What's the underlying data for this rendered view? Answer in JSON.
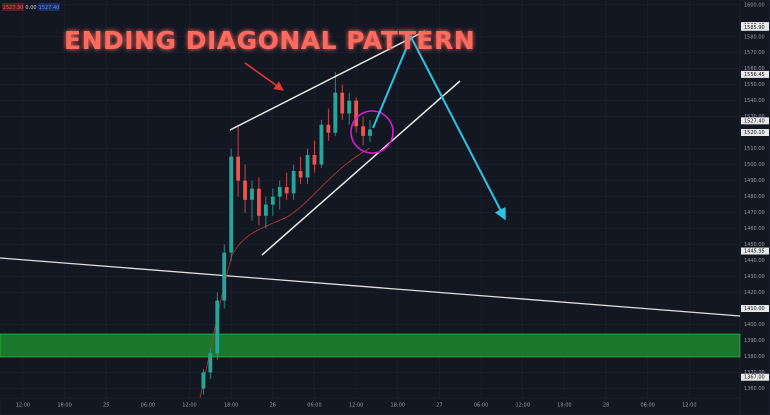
{
  "chart_data": {
    "type": "candlestick",
    "title": "ENDING DIAGONAL PATTERN",
    "header_quotes": [
      "1527.30",
      "0.00",
      "1527.40"
    ],
    "xlim": [
      -3.3,
      103.3
    ],
    "xticks": [
      {
        "value": 0,
        "label": "12:00"
      },
      {
        "value": 6,
        "label": "18:00"
      },
      {
        "value": 12,
        "label": "25"
      },
      {
        "value": 18,
        "label": "06:00"
      },
      {
        "value": 24,
        "label": "12:00"
      },
      {
        "value": 30,
        "label": "18:00"
      },
      {
        "value": 36,
        "label": "26"
      },
      {
        "value": 42,
        "label": "06:00"
      },
      {
        "value": 48,
        "label": "12:00"
      },
      {
        "value": 54,
        "label": "18:00"
      },
      {
        "value": 60,
        "label": "27"
      },
      {
        "value": 66,
        "label": "06:00"
      },
      {
        "value": 72,
        "label": "12:00"
      },
      {
        "value": 78,
        "label": "18:00"
      },
      {
        "value": 84,
        "label": "28"
      },
      {
        "value": 90,
        "label": "06:00"
      },
      {
        "value": 96,
        "label": "12:00"
      }
    ],
    "ylim": [
      1354,
      1603
    ],
    "yticks": [
      {
        "value": 1360,
        "label": "1360.00"
      },
      {
        "value": 1370,
        "label": "1370.00"
      },
      {
        "value": 1380,
        "label": "1380.00"
      },
      {
        "value": 1390,
        "label": "1390.00"
      },
      {
        "value": 1400,
        "label": "1400.00"
      },
      {
        "value": 1420,
        "label": "1420.00"
      },
      {
        "value": 1430,
        "label": "1430.00"
      },
      {
        "value": 1440,
        "label": "1440.00"
      },
      {
        "value": 1450,
        "label": "1450.00"
      },
      {
        "value": 1460,
        "label": "1460.00"
      },
      {
        "value": 1470,
        "label": "1470.00"
      },
      {
        "value": 1480,
        "label": "1480.00"
      },
      {
        "value": 1490,
        "label": "1490.00"
      },
      {
        "value": 1500,
        "label": "1500.00"
      },
      {
        "value": 1510,
        "label": "1510.00"
      },
      {
        "value": 1530,
        "label": "1530.00"
      },
      {
        "value": 1540,
        "label": "1540.00"
      },
      {
        "value": 1550,
        "label": "1550.00"
      },
      {
        "value": 1560,
        "label": "1560.00"
      },
      {
        "value": 1570,
        "label": "1570.00"
      },
      {
        "value": 1580,
        "label": "1580.00"
      },
      {
        "value": 1600,
        "label": "1600.00"
      }
    ],
    "price_labels": [
      {
        "value": 1587,
        "label": "1587.00"
      },
      {
        "value": 1585.9,
        "label": "1585.90"
      },
      {
        "value": 1556.45,
        "label": "1556.45"
      },
      {
        "value": 1527.4,
        "label": "1527.40"
      },
      {
        "value": 1520.1,
        "label": "1520.10"
      },
      {
        "value": 1445.95,
        "label": "1445.95"
      },
      {
        "value": 1410,
        "label": "1410.00"
      },
      {
        "value": 1367,
        "label": "1367.00"
      }
    ],
    "up_color": "#26a69a",
    "down_color": "#ef5350",
    "x": [
      26,
      27,
      28,
      29,
      30,
      31,
      32,
      33,
      34,
      35,
      36,
      37,
      38,
      39,
      40,
      41,
      42,
      43,
      44,
      45,
      46,
      47,
      48,
      49,
      50
    ],
    "open": [
      1360,
      1370,
      1382,
      1415,
      1445,
      1505,
      1490,
      1478,
      1485,
      1468,
      1475,
      1480,
      1486,
      1482,
      1496,
      1492,
      1506,
      1500,
      1525,
      1520,
      1545,
      1532,
      1540,
      1524,
      1518
    ],
    "high": [
      1372,
      1385,
      1420,
      1450,
      1510,
      1525,
      1500,
      1490,
      1492,
      1480,
      1485,
      1490,
      1495,
      1500,
      1505,
      1510,
      1515,
      1528,
      1535,
      1558,
      1550,
      1545,
      1542,
      1530,
      1528
    ],
    "low": [
      1356,
      1366,
      1378,
      1410,
      1440,
      1480,
      1470,
      1465,
      1462,
      1460,
      1468,
      1472,
      1478,
      1478,
      1488,
      1488,
      1495,
      1498,
      1515,
      1518,
      1528,
      1525,
      1520,
      1512,
      1514
    ],
    "close": [
      1370,
      1382,
      1415,
      1445,
      1505,
      1490,
      1478,
      1485,
      1468,
      1475,
      1480,
      1486,
      1482,
      1496,
      1492,
      1506,
      1500,
      1525,
      1520,
      1545,
      1532,
      1540,
      1524,
      1518,
      1522
    ]
  }
}
